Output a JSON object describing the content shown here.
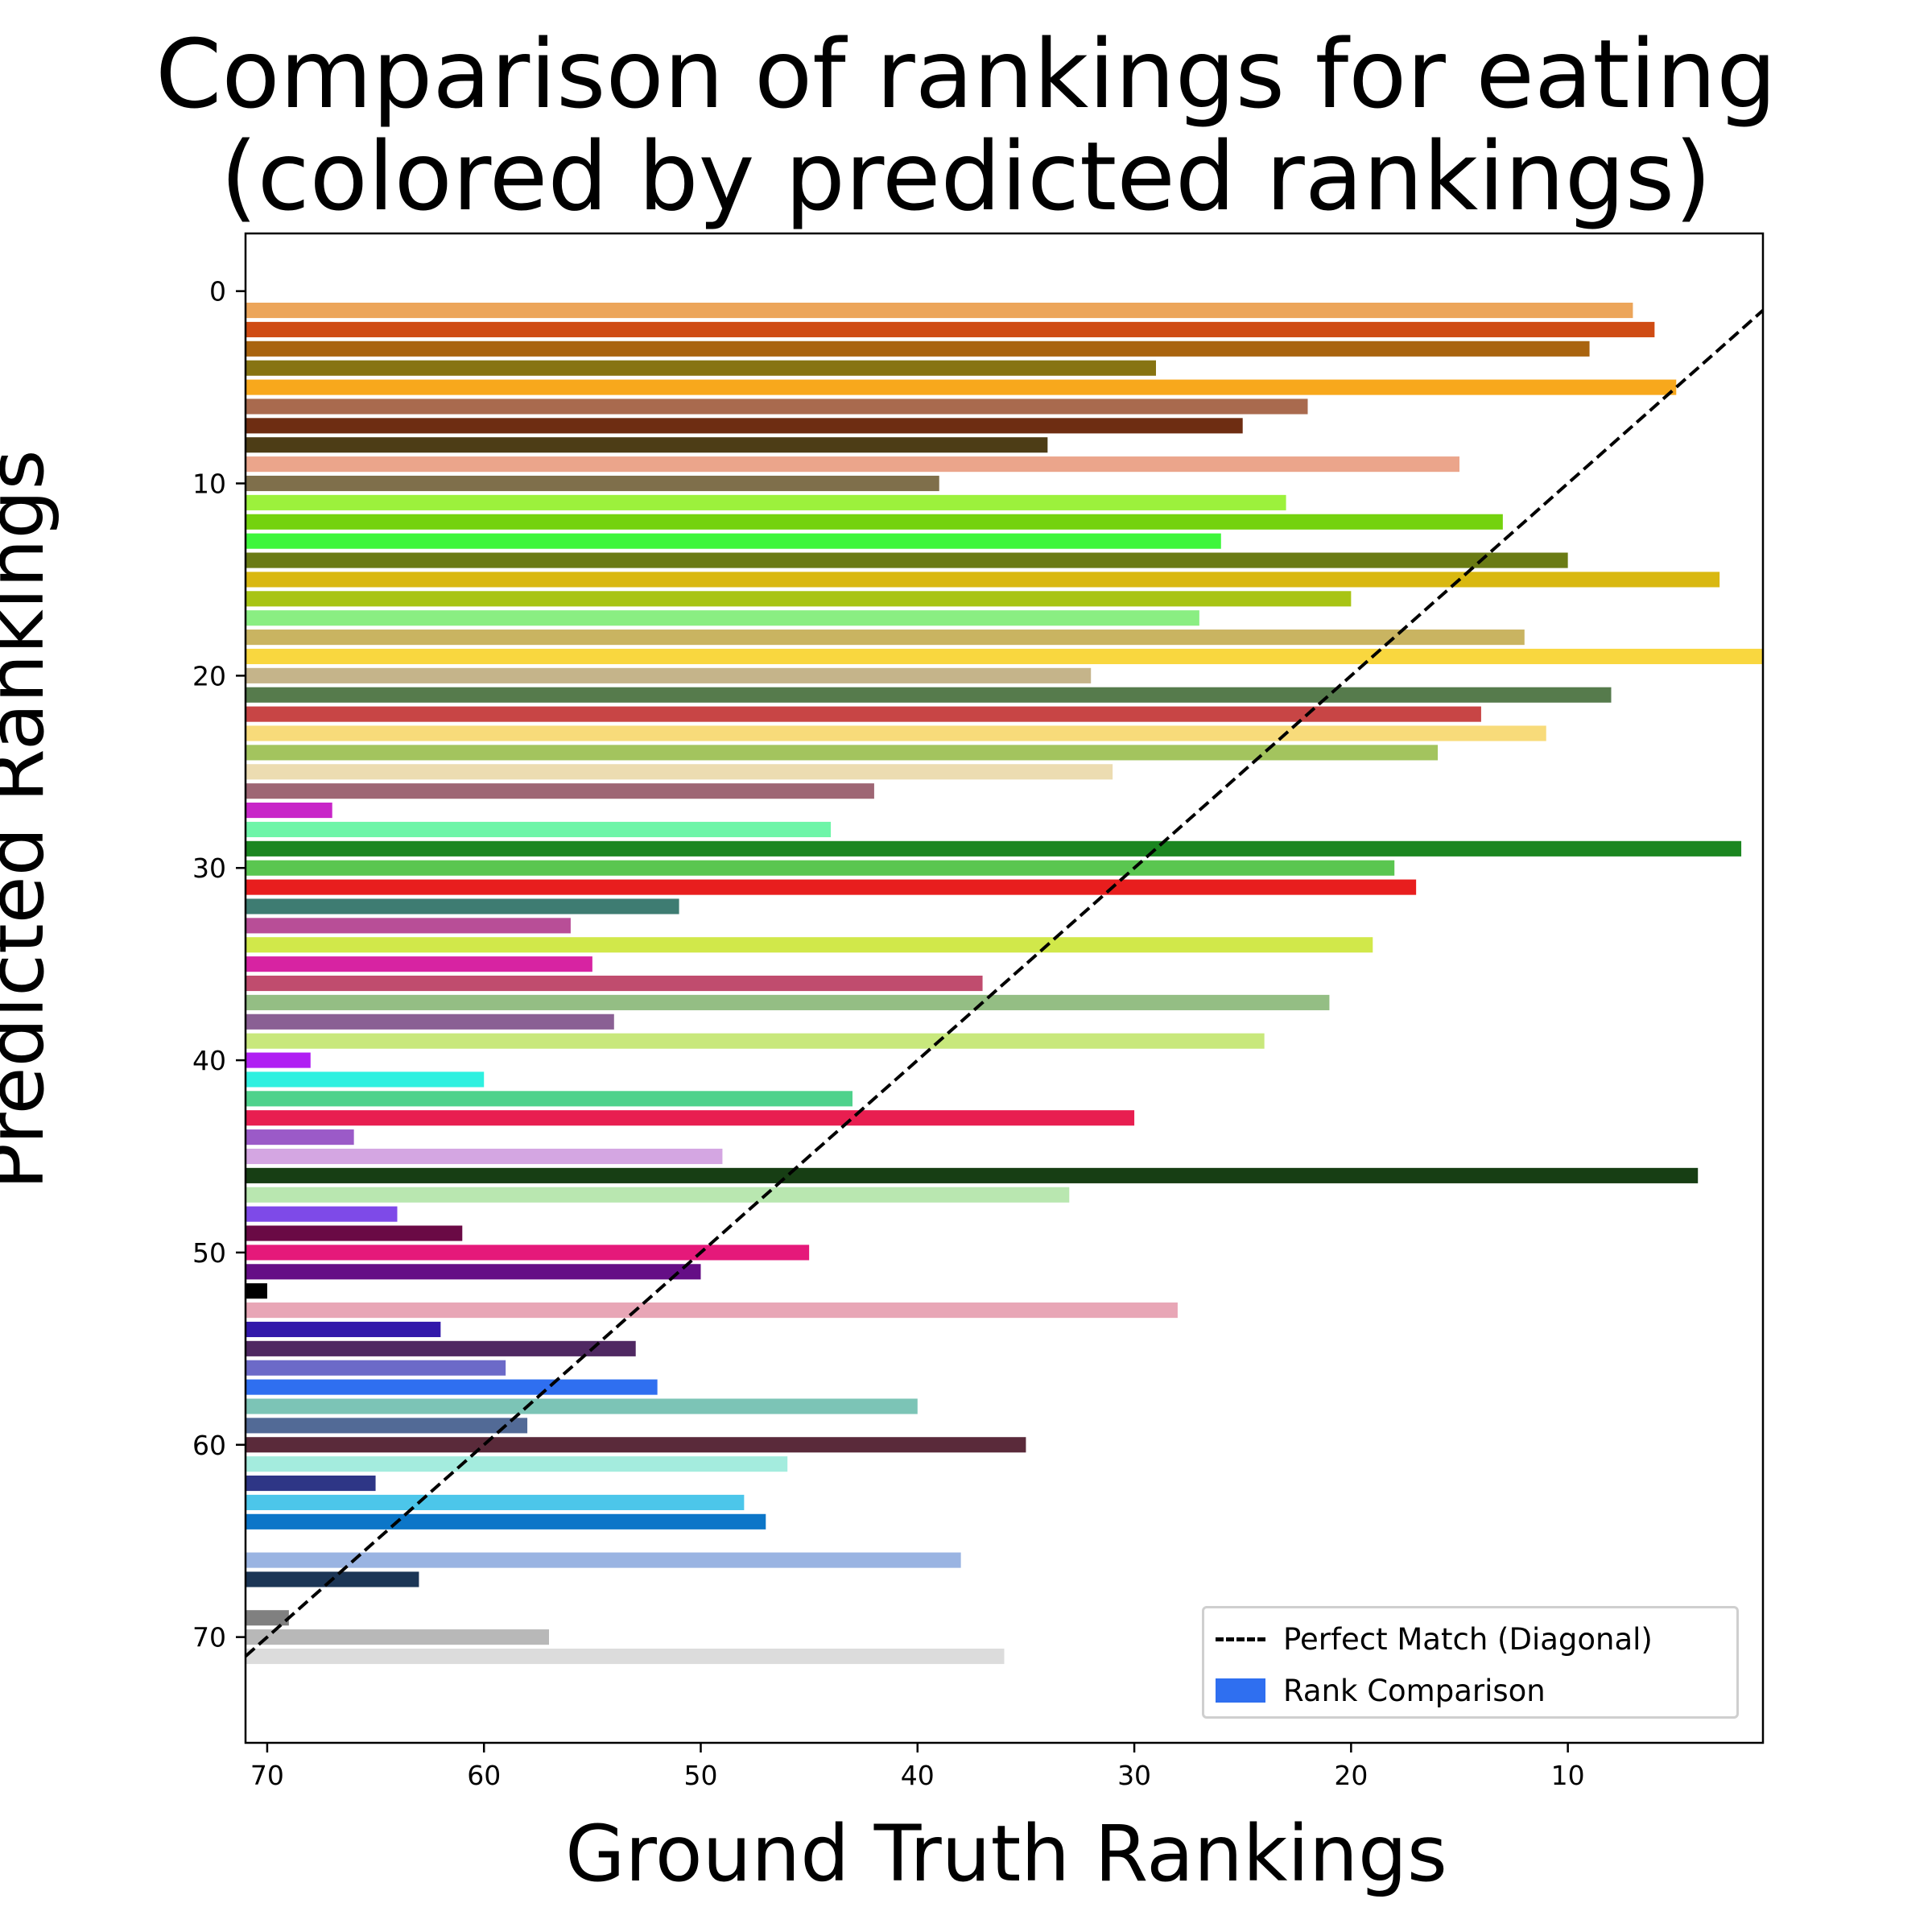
{
  "chart_data": {
    "type": "bar",
    "orientation": "horizontal",
    "title_lines": [
      "Comparison of rankings for eating",
      "(colored by predicted rankings)"
    ],
    "xlabel": "Ground Truth Rankings",
    "ylabel": "Predicted Rankings",
    "x_inverted": true,
    "y_inverted": true,
    "xlim": [
      71,
      1
    ],
    "ylim": [
      -3,
      75.5
    ],
    "xticks": [
      70,
      60,
      50,
      40,
      30,
      20,
      10
    ],
    "yticks": [
      0,
      10,
      20,
      30,
      40,
      50,
      60,
      70
    ],
    "grid": false,
    "legend": {
      "position": "lower-right",
      "entries": [
        "Perfect Match (Diagonal)",
        "Rank Comparison"
      ]
    },
    "diagonal": {
      "label": "Perfect Match (Diagonal)",
      "from": [
        71,
        71
      ],
      "to": [
        1,
        1
      ],
      "style": "dashed",
      "color": "#000000"
    },
    "bars": [
      {
        "predicted": 1,
        "ground_truth": 7,
        "color": "#eca55a"
      },
      {
        "predicted": 2,
        "ground_truth": 6,
        "color": "#cf4c14"
      },
      {
        "predicted": 3,
        "ground_truth": 9,
        "color": "#a9640f"
      },
      {
        "predicted": 4,
        "ground_truth": 29,
        "color": "#877412"
      },
      {
        "predicted": 5,
        "ground_truth": 5,
        "color": "#f8a81c"
      },
      {
        "predicted": 6,
        "ground_truth": 22,
        "color": "#a96a4e"
      },
      {
        "predicted": 7,
        "ground_truth": 25,
        "color": "#6e2d12"
      },
      {
        "predicted": 8,
        "ground_truth": 34,
        "color": "#4d3d16"
      },
      {
        "predicted": 9,
        "ground_truth": 15,
        "color": "#eba58b"
      },
      {
        "predicted": 10,
        "ground_truth": 39,
        "color": "#7f6f4b"
      },
      {
        "predicted": 11,
        "ground_truth": 23,
        "color": "#9cf13c"
      },
      {
        "predicted": 12,
        "ground_truth": 13,
        "color": "#74d20e"
      },
      {
        "predicted": 13,
        "ground_truth": 26,
        "color": "#3ef63b"
      },
      {
        "predicted": 14,
        "ground_truth": 10,
        "color": "#6a7b15"
      },
      {
        "predicted": 15,
        "ground_truth": 3,
        "color": "#d9b811"
      },
      {
        "predicted": 16,
        "ground_truth": 20,
        "color": "#a8c414"
      },
      {
        "predicted": 17,
        "ground_truth": 27,
        "color": "#8aee82"
      },
      {
        "predicted": 18,
        "ground_truth": 12,
        "color": "#c9b461"
      },
      {
        "predicted": 19,
        "ground_truth": 1,
        "color": "#f9d73f"
      },
      {
        "predicted": 20,
        "ground_truth": 32,
        "color": "#c5b48a"
      },
      {
        "predicted": 21,
        "ground_truth": 8,
        "color": "#567b4c"
      },
      {
        "predicted": 22,
        "ground_truth": 14,
        "color": "#c84545"
      },
      {
        "predicted": 23,
        "ground_truth": 11,
        "color": "#f8db7a"
      },
      {
        "predicted": 24,
        "ground_truth": 16,
        "color": "#a3c45e"
      },
      {
        "predicted": 25,
        "ground_truth": 31,
        "color": "#ecdcb1"
      },
      {
        "predicted": 26,
        "ground_truth": 42,
        "color": "#9e6674"
      },
      {
        "predicted": 27,
        "ground_truth": 67,
        "color": "#c826c8"
      },
      {
        "predicted": 28,
        "ground_truth": 44,
        "color": "#6ef5a8"
      },
      {
        "predicted": 29,
        "ground_truth": 2,
        "color": "#1b8620"
      },
      {
        "predicted": 30,
        "ground_truth": 18,
        "color": "#5ac650"
      },
      {
        "predicted": 31,
        "ground_truth": 17,
        "color": "#e81e1e"
      },
      {
        "predicted": 32,
        "ground_truth": 51,
        "color": "#3e7c72"
      },
      {
        "predicted": 33,
        "ground_truth": 56,
        "color": "#b84e97"
      },
      {
        "predicted": 34,
        "ground_truth": 19,
        "color": "#d1e84a"
      },
      {
        "predicted": 35,
        "ground_truth": 55,
        "color": "#d723a2"
      },
      {
        "predicted": 36,
        "ground_truth": 37,
        "color": "#c04c6e"
      },
      {
        "predicted": 37,
        "ground_truth": 21,
        "color": "#94be84"
      },
      {
        "predicted": 38,
        "ground_truth": 54,
        "color": "#8a6094"
      },
      {
        "predicted": 39,
        "ground_truth": 24,
        "color": "#c8e87c"
      },
      {
        "predicted": 40,
        "ground_truth": 68,
        "color": "#b01ff3"
      },
      {
        "predicted": 41,
        "ground_truth": 60,
        "color": "#2ff0e0"
      },
      {
        "predicted": 42,
        "ground_truth": 43,
        "color": "#4fd28c"
      },
      {
        "predicted": 43,
        "ground_truth": 30,
        "color": "#e81e50"
      },
      {
        "predicted": 44,
        "ground_truth": 66,
        "color": "#9b5ac8"
      },
      {
        "predicted": 45,
        "ground_truth": 49,
        "color": "#d4a6e2"
      },
      {
        "predicted": 46,
        "ground_truth": 4,
        "color": "#173e14"
      },
      {
        "predicted": 47,
        "ground_truth": 33,
        "color": "#b9e7b0"
      },
      {
        "predicted": 48,
        "ground_truth": 64,
        "color": "#7e4ae8"
      },
      {
        "predicted": 49,
        "ground_truth": 61,
        "color": "#6a0a45"
      },
      {
        "predicted": 50,
        "ground_truth": 45,
        "color": "#e5197a"
      },
      {
        "predicted": 51,
        "ground_truth": 50,
        "color": "#650e86"
      },
      {
        "predicted": 52,
        "ground_truth": 70,
        "color": "#000000"
      },
      {
        "predicted": 53,
        "ground_truth": 28,
        "color": "#e8a6b6"
      },
      {
        "predicted": 54,
        "ground_truth": 62,
        "color": "#3218aa"
      },
      {
        "predicted": 55,
        "ground_truth": 53,
        "color": "#4f2862"
      },
      {
        "predicted": 56,
        "ground_truth": 59,
        "color": "#6c6ac8"
      },
      {
        "predicted": 57,
        "ground_truth": 52,
        "color": "#2f6ff0"
      },
      {
        "predicted": 58,
        "ground_truth": 40,
        "color": "#7cc4b6"
      },
      {
        "predicted": 59,
        "ground_truth": 58,
        "color": "#526a96"
      },
      {
        "predicted": 60,
        "ground_truth": 35,
        "color": "#5a2a3a"
      },
      {
        "predicted": 61,
        "ground_truth": 46,
        "color": "#a4ecde"
      },
      {
        "predicted": 62,
        "ground_truth": 65,
        "color": "#2e3686"
      },
      {
        "predicted": 63,
        "ground_truth": 48,
        "color": "#4cc6ea"
      },
      {
        "predicted": 64,
        "ground_truth": 47,
        "color": "#0c76c8"
      },
      {
        "predicted": 66,
        "ground_truth": 38,
        "color": "#9ab4e2"
      },
      {
        "predicted": 67,
        "ground_truth": 63,
        "color": "#1c3656"
      },
      {
        "predicted": 69,
        "ground_truth": 69,
        "color": "#808080"
      },
      {
        "predicted": 70,
        "ground_truth": 57,
        "color": "#b8b8b8"
      },
      {
        "predicted": 71,
        "ground_truth": 36,
        "color": "#dcdcdc"
      }
    ]
  }
}
